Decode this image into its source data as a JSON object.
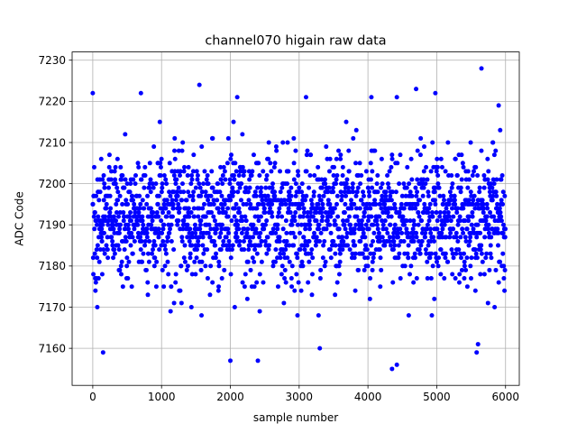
{
  "chart_data": {
    "type": "scatter",
    "title": "channel070 higain raw data",
    "xlabel": "sample number",
    "ylabel": "ADC Code",
    "xlim": [
      -300,
      6200
    ],
    "ylim": [
      7151,
      7232
    ],
    "xticks": [
      0,
      1000,
      2000,
      3000,
      4000,
      5000,
      6000
    ],
    "yticks": [
      7160,
      7170,
      7180,
      7190,
      7200,
      7210,
      7220,
      7230
    ],
    "grid": true,
    "legend": "none",
    "marker_color": "#0000ff",
    "n_samples": 6000,
    "y_center": 7192,
    "y_band_low": 7171,
    "y_band_high": 7212,
    "outliers": [
      {
        "x": 0,
        "y": 7222
      },
      {
        "x": 150,
        "y": 7159
      },
      {
        "x": 700,
        "y": 7222
      },
      {
        "x": 1550,
        "y": 7224
      },
      {
        "x": 2000,
        "y": 7157
      },
      {
        "x": 2100,
        "y": 7221
      },
      {
        "x": 2400,
        "y": 7157
      },
      {
        "x": 3100,
        "y": 7221
      },
      {
        "x": 3300,
        "y": 7160
      },
      {
        "x": 4050,
        "y": 7221
      },
      {
        "x": 4350,
        "y": 7155
      },
      {
        "x": 4420,
        "y": 7156
      },
      {
        "x": 4420,
        "y": 7221
      },
      {
        "x": 4700,
        "y": 7223
      },
      {
        "x": 4980,
        "y": 7222
      },
      {
        "x": 5650,
        "y": 7228
      },
      {
        "x": 5580,
        "y": 7159
      },
      {
        "x": 5600,
        "y": 7161
      },
      {
        "x": 5900,
        "y": 7219
      }
    ]
  }
}
